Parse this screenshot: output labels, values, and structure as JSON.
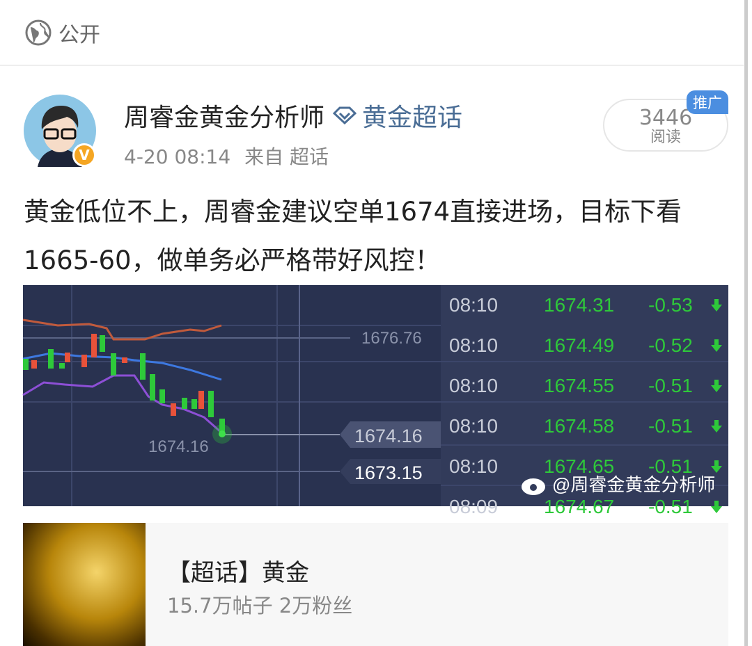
{
  "visibility": {
    "label": "公开",
    "icon": "globe-icon"
  },
  "post": {
    "author": "周睿金黄金分析师",
    "verified_badge": "V",
    "topic_icon": "diamond-icon",
    "topic": "黄金超话",
    "time": "4-20 08:14",
    "source": "来自 超话",
    "reads": {
      "count": "3446",
      "label": "阅读"
    },
    "promo_badge": "推广",
    "text": "黄金低位不上，周睿金建议空单1674直接进场，目标下看1665-60，做单务必严格带好风控！",
    "image": {
      "price_level": "1676.76",
      "last_price_label": "1674.16",
      "current_tag": "1674.16",
      "lower_tag": "1673.15",
      "ticks": [
        {
          "time": "08:10",
          "price": "1674.31",
          "change": "-0.53"
        },
        {
          "time": "08:10",
          "price": "1674.49",
          "change": "-0.52"
        },
        {
          "time": "08:10",
          "price": "1674.55",
          "change": "-0.51"
        },
        {
          "time": "08:10",
          "price": "1674.58",
          "change": "-0.51"
        },
        {
          "time": "08:10",
          "price": "1674.65",
          "change": "-0.51"
        },
        {
          "time": "08:09",
          "price": "1674.67",
          "change": "-0.51"
        }
      ],
      "watermark": "@周睿金黄金分析师"
    },
    "topic_card": {
      "title": "【超话】黄金",
      "stats": "15.7万帖子 2万粉丝"
    }
  },
  "colors": {
    "accent": "#4a6d95",
    "promo": "#4b8ee0",
    "up": "#e8523a",
    "down": "#2ec93a",
    "chart_bg": "#293250"
  }
}
